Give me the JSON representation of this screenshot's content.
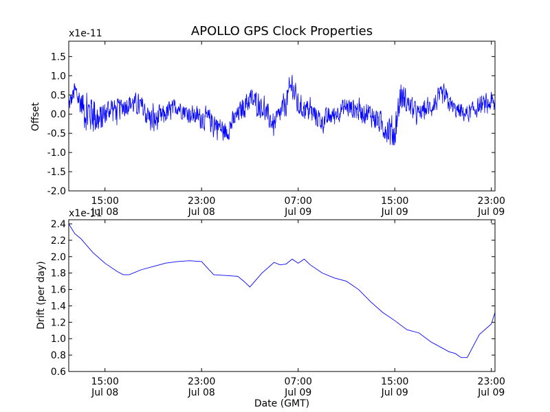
{
  "title": "APOLLO GPS Clock Properties",
  "series_color": "#0000ff",
  "chart_data": [
    {
      "type": "line",
      "ylabel": "Offset",
      "exponent_label": "x1e-11",
      "ylim": [
        -2.0,
        1.9
      ],
      "y_ticks": [
        "-2.0",
        "-1.5",
        "-1.0",
        "-0.5",
        "0.0",
        "0.5",
        "1.0",
        "1.5"
      ],
      "y_tick_values": [
        -2.0,
        -1.5,
        -1.0,
        -0.5,
        0.0,
        0.5,
        1.0,
        1.5
      ],
      "x_ticks": [
        {
          "time": "15:00",
          "date": "Jul 08"
        },
        {
          "time": "23:00",
          "date": "Jul 08"
        },
        {
          "time": "07:00",
          "date": "Jul 09"
        },
        {
          "time": "15:00",
          "date": "Jul 09"
        },
        {
          "time": "23:00",
          "date": "Jul 09"
        }
      ],
      "x_tick_hours": [
        15,
        23,
        31,
        39,
        47
      ],
      "xlim_hours": [
        12,
        47.3
      ],
      "series": [
        {
          "x_hours": [
            12.0,
            12.5,
            13.0,
            13.5,
            14.0,
            14.5,
            15.0,
            15.5,
            16.0,
            17.0,
            18.0,
            19.0,
            20.0,
            21.0,
            22.0,
            23.0,
            24.0,
            25.0,
            26.0,
            27.0,
            28.0,
            29.0,
            30.0,
            30.5,
            31.0,
            32.0,
            33.0,
            34.0,
            35.0,
            36.0,
            37.0,
            38.0,
            39.0,
            39.5,
            40.0,
            41.0,
            42.0,
            43.0,
            44.0,
            45.0,
            46.0,
            47.0,
            47.3
          ],
          "mean": [
            0.2,
            0.6,
            0.3,
            0.0,
            0.1,
            -0.2,
            0.0,
            0.2,
            0.1,
            0.3,
            0.2,
            -0.2,
            0.0,
            0.2,
            0.0,
            -0.1,
            -0.2,
            -0.5,
            0.0,
            0.4,
            0.2,
            -0.3,
            0.3,
            0.8,
            0.2,
            0.1,
            -0.2,
            0.0,
            0.2,
            0.1,
            0.0,
            -0.3,
            -0.5,
            0.5,
            0.3,
            0.0,
            0.2,
            0.5,
            0.1,
            0.0,
            0.2,
            0.3,
            0.2
          ],
          "spread": [
            0.4,
            0.5,
            0.7,
            0.9,
            1.0,
            0.8,
            0.6,
            0.5,
            0.5,
            0.5,
            0.5,
            0.6,
            0.5,
            0.4,
            0.4,
            0.5,
            0.6,
            0.5,
            0.4,
            0.6,
            0.5,
            0.5,
            0.6,
            0.7,
            0.5,
            0.5,
            0.5,
            0.4,
            0.5,
            0.5,
            0.5,
            0.6,
            0.8,
            0.7,
            0.5,
            0.4,
            0.4,
            0.5,
            0.4,
            0.4,
            0.4,
            0.5,
            0.4
          ]
        }
      ]
    },
    {
      "type": "line",
      "ylabel": "Drift (per day)",
      "xlabel": "Date (GMT)",
      "exponent_label": "x1e-11",
      "ylim": [
        0.6,
        2.45
      ],
      "y_ticks": [
        "0.6",
        "0.8",
        "1.0",
        "1.2",
        "1.4",
        "1.6",
        "1.8",
        "2.0",
        "2.2",
        "2.4"
      ],
      "y_tick_values": [
        0.6,
        0.8,
        1.0,
        1.2,
        1.4,
        1.6,
        1.8,
        2.0,
        2.2,
        2.4
      ],
      "x_ticks": [
        {
          "time": "15:00",
          "date": "Jul 08"
        },
        {
          "time": "23:00",
          "date": "Jul 08"
        },
        {
          "time": "07:00",
          "date": "Jul 09"
        },
        {
          "time": "15:00",
          "date": "Jul 09"
        },
        {
          "time": "23:00",
          "date": "Jul 09"
        }
      ],
      "x_tick_hours": [
        15,
        23,
        31,
        39,
        47
      ],
      "xlim_hours": [
        12,
        47.3
      ],
      "series": [
        {
          "x_hours": [
            12.0,
            12.5,
            13.0,
            14.0,
            15.0,
            16.0,
            16.5,
            17.0,
            18.0,
            19.0,
            20.0,
            21.0,
            22.0,
            23.0,
            24.0,
            25.0,
            26.0,
            26.5,
            27.0,
            28.0,
            29.0,
            29.5,
            30.0,
            30.5,
            31.0,
            31.5,
            32.0,
            33.0,
            34.0,
            35.0,
            36.0,
            37.0,
            38.0,
            39.0,
            40.0,
            41.0,
            42.0,
            43.0,
            43.5,
            44.0,
            44.5,
            45.0,
            46.0,
            47.0,
            47.3
          ],
          "y": [
            2.4,
            2.28,
            2.22,
            2.05,
            1.92,
            1.82,
            1.78,
            1.78,
            1.84,
            1.88,
            1.92,
            1.94,
            1.95,
            1.94,
            1.78,
            1.77,
            1.76,
            1.7,
            1.63,
            1.8,
            1.93,
            1.9,
            1.91,
            1.97,
            1.92,
            1.97,
            1.9,
            1.8,
            1.74,
            1.7,
            1.6,
            1.45,
            1.32,
            1.22,
            1.11,
            1.07,
            0.96,
            0.88,
            0.84,
            0.82,
            0.77,
            0.77,
            1.05,
            1.18,
            1.32
          ]
        }
      ]
    }
  ]
}
